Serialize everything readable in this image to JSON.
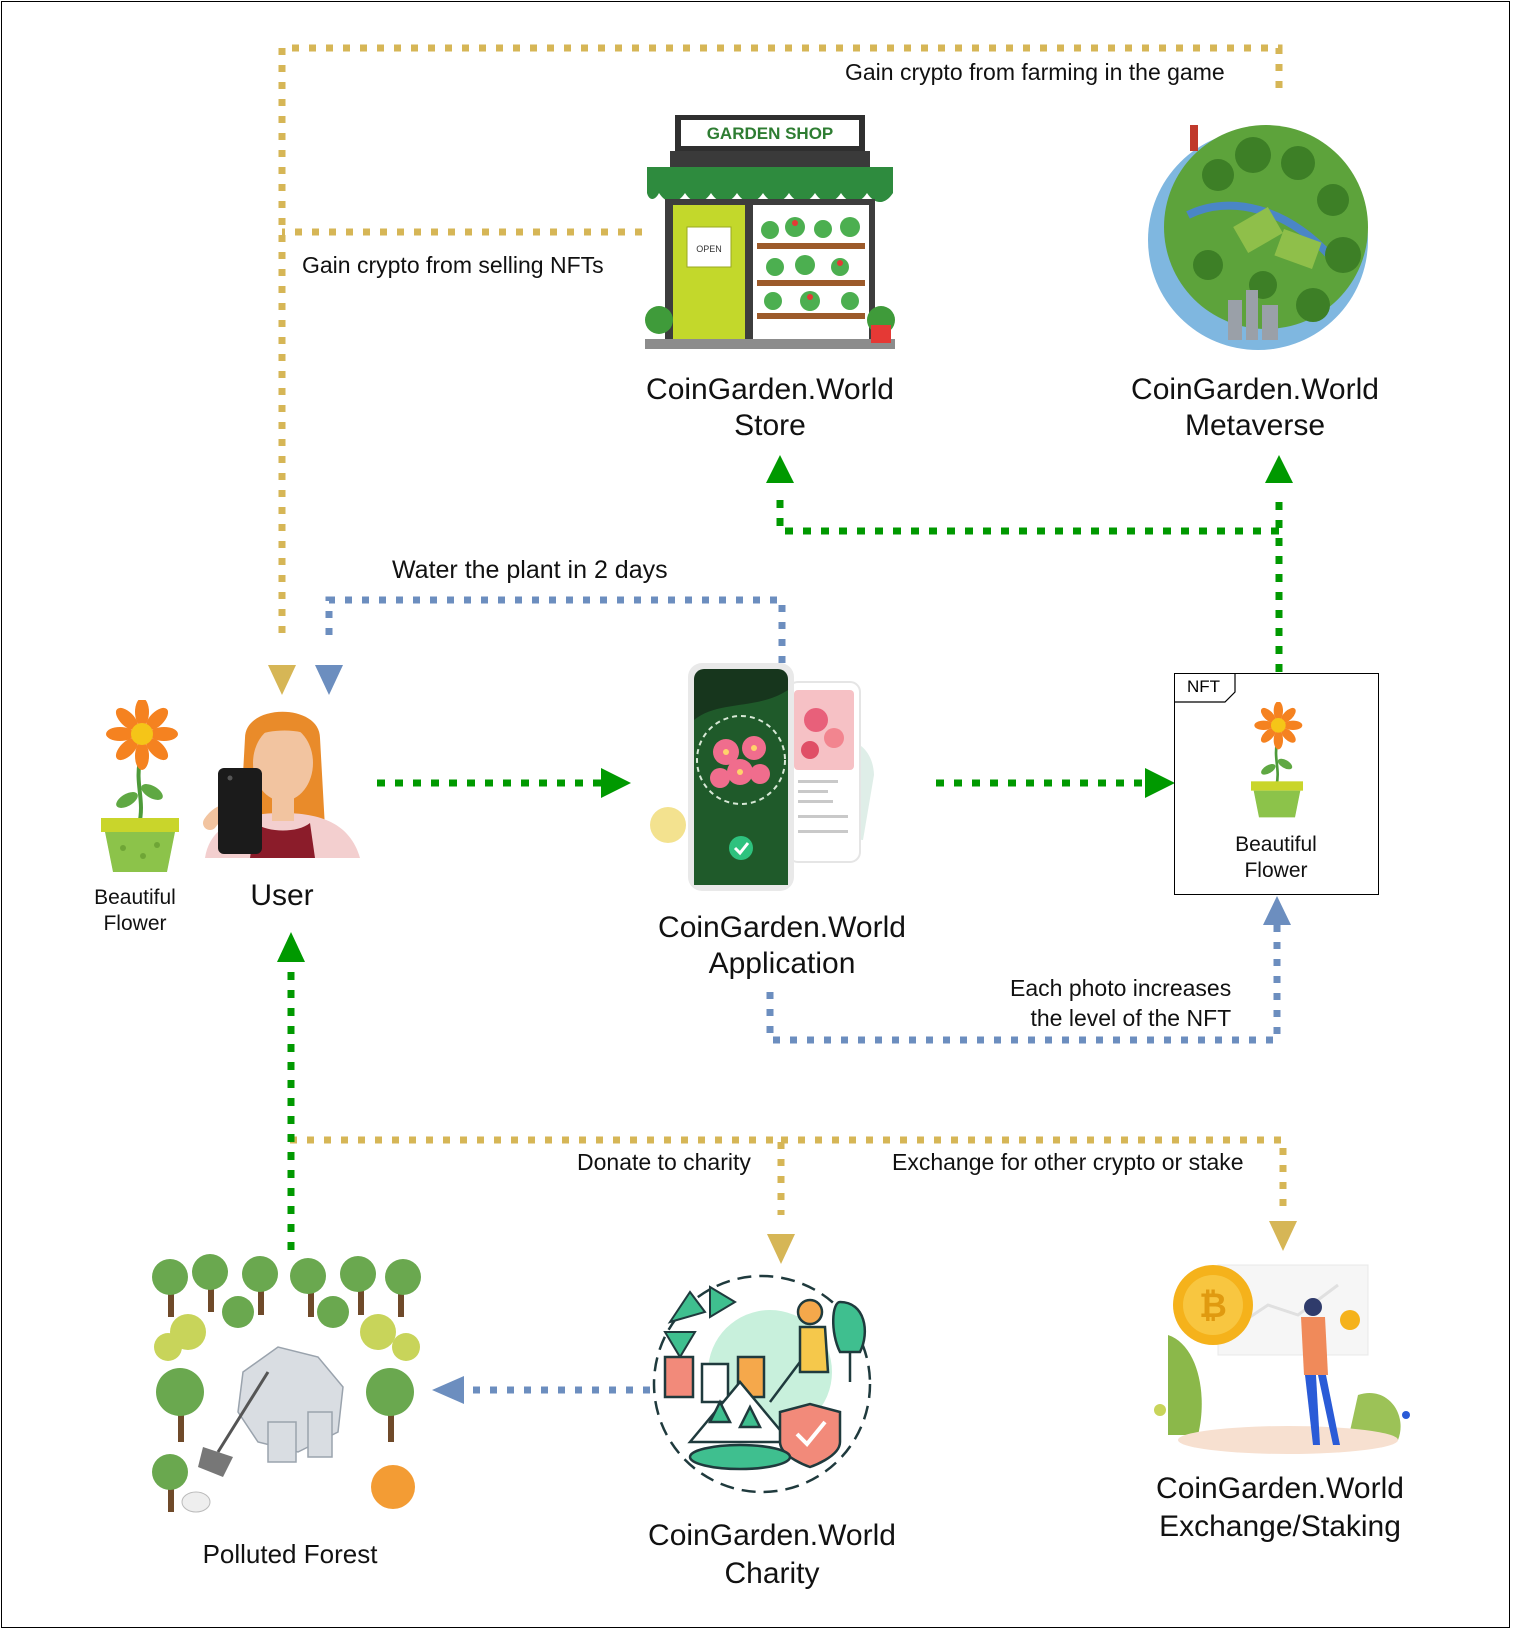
{
  "nodes": {
    "user": {
      "label": "User",
      "side_label": "Beautiful\nFlower"
    },
    "store": {
      "label": "CoinGarden.World\nStore",
      "sign": "GARDEN SHOP",
      "door_sign": "OPEN"
    },
    "metaverse": {
      "label": "CoinGarden.World\nMetaverse"
    },
    "application": {
      "label": "CoinGarden.World\nApplication"
    },
    "nft": {
      "tag": "NFT",
      "label": "Beautiful\nFlower"
    },
    "charity": {
      "label": "CoinGarden.World\nCharity"
    },
    "exchange": {
      "label": "CoinGarden.World\nExchange/Staking"
    },
    "forest": {
      "label": "Polluted Forest"
    }
  },
  "edges": {
    "farming": "Gain crypto from farming in the game",
    "selling": "Gain crypto from selling NFTs",
    "water": "Water the plant in 2 days",
    "photo": "Each photo increases\nthe level of the NFT",
    "donate": "Donate to charity",
    "exchange": "Exchange for other crypto or stake"
  },
  "colors": {
    "gold": "#d6b656",
    "green": "#009900",
    "blue": "#6c8ebf"
  }
}
